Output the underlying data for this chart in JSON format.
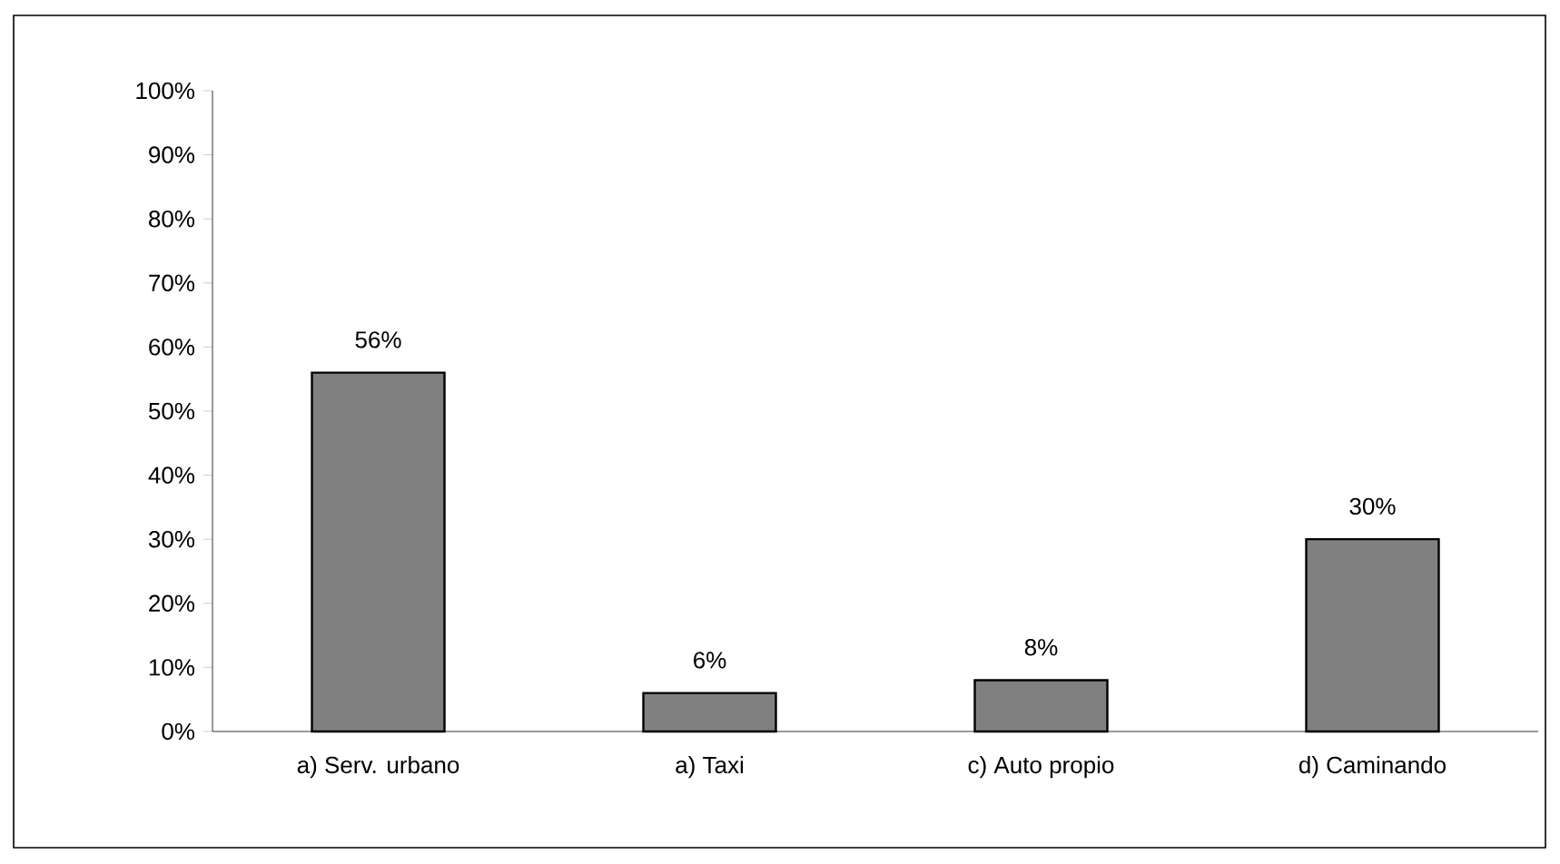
{
  "chart_data": {
    "type": "bar",
    "categories": [
      "a) Serv. urbano",
      "a) Taxi",
      "c) Auto propio",
      "d) Caminando"
    ],
    "values": [
      56,
      6,
      8,
      30
    ],
    "value_labels": [
      "56%",
      "6%",
      "8%",
      "30%"
    ],
    "color": "#808080",
    "ylim": [
      0,
      100
    ],
    "yticks": [
      {
        "value": 0,
        "label": "0%"
      },
      {
        "value": 10,
        "label": "10%"
      },
      {
        "value": 20,
        "label": "20%"
      },
      {
        "value": 30,
        "label": "30%"
      },
      {
        "value": 40,
        "label": "40%"
      },
      {
        "value": 50,
        "label": "50%"
      },
      {
        "value": 60,
        "label": "60%"
      },
      {
        "value": 70,
        "label": "70%"
      },
      {
        "value": 80,
        "label": "80%"
      },
      {
        "value": 90,
        "label": "90%"
      },
      {
        "value": 100,
        "label": "100%"
      }
    ]
  }
}
